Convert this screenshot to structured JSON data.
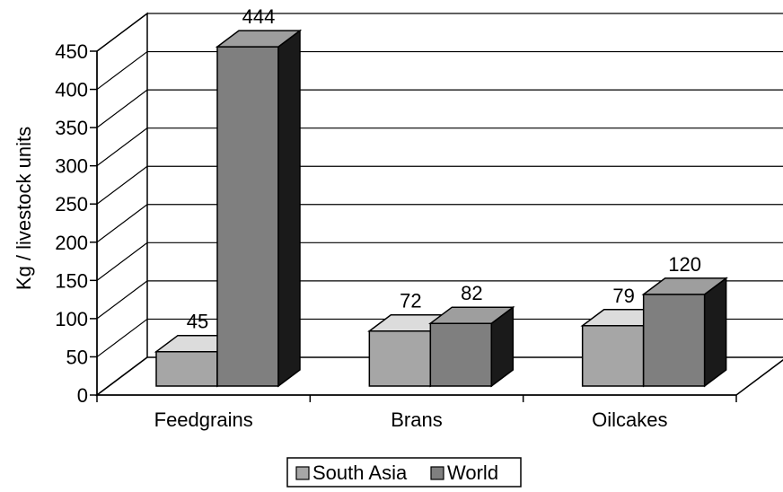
{
  "chart_data": {
    "type": "bar",
    "style": "3d-clustered-column",
    "categories": [
      "Feedgrains",
      "Brans",
      "Oilcakes"
    ],
    "series": [
      {
        "name": "South Asia",
        "values": [
          45,
          72,
          79
        ],
        "color": "#a6a6a6"
      },
      {
        "name": "World",
        "values": [
          444,
          82,
          120
        ],
        "color": "#7f7f7f"
      }
    ],
    "data_labels": [
      [
        "45",
        "72",
        "79"
      ],
      [
        "444",
        "82",
        "120"
      ]
    ],
    "ylabel": "Kg / livestock units",
    "xlabel": "",
    "title": "",
    "ylim": [
      0,
      450
    ],
    "yticks": [
      0,
      50,
      100,
      150,
      200,
      250,
      300,
      350,
      400,
      450
    ],
    "grid": true,
    "legend_position": "bottom"
  }
}
